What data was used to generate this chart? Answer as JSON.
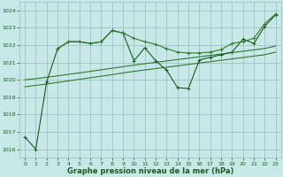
{
  "bg_color": "#c8e8e8",
  "grid_color": "#99bbbb",
  "dark_green": "#1a5c1a",
  "mid_green": "#2d7a2d",
  "xlabel": "Graphe pression niveau de la mer (hPa)",
  "ylim": [
    1015.5,
    1024.5
  ],
  "xlim": [
    -0.5,
    23.5
  ],
  "yticks": [
    1016,
    1017,
    1018,
    1019,
    1020,
    1021,
    1022,
    1023,
    1024
  ],
  "xticks": [
    0,
    1,
    2,
    3,
    4,
    5,
    6,
    7,
    8,
    9,
    10,
    11,
    12,
    13,
    14,
    15,
    16,
    17,
    18,
    19,
    20,
    21,
    22,
    23
  ],
  "line1_x": [
    0,
    1,
    2,
    3,
    4,
    5,
    6,
    7,
    8,
    9,
    10,
    11,
    12,
    13,
    14,
    15,
    16,
    17,
    18,
    19,
    20,
    21,
    22,
    23
  ],
  "line1_y": [
    1016.7,
    1016.0,
    1019.9,
    1021.8,
    1022.2,
    1022.2,
    1022.1,
    1022.2,
    1022.85,
    1022.7,
    1021.1,
    1021.85,
    1021.1,
    1020.55,
    1019.55,
    1019.5,
    1021.15,
    1021.3,
    1021.45,
    1021.6,
    1022.35,
    1022.1,
    1023.1,
    1023.75
  ],
  "line2_x": [
    3,
    4,
    5,
    6,
    7,
    8,
    9,
    10,
    11,
    12,
    13,
    14,
    15,
    16,
    17,
    18,
    19,
    20,
    21,
    22,
    23
  ],
  "line2_y": [
    1021.8,
    1022.2,
    1022.2,
    1022.1,
    1022.2,
    1022.85,
    1022.7,
    1022.4,
    1022.2,
    1022.05,
    1021.8,
    1021.6,
    1021.55,
    1021.55,
    1021.6,
    1021.75,
    1022.1,
    1022.2,
    1022.4,
    1023.25,
    1023.8
  ],
  "trend1_x": [
    0,
    1,
    2,
    3,
    4,
    5,
    6,
    7,
    8,
    9,
    10,
    11,
    12,
    13,
    14,
    15,
    16,
    17,
    18,
    19,
    20,
    21,
    22,
    23
  ],
  "trend1_y": [
    1020.0,
    1020.07,
    1020.15,
    1020.23,
    1020.32,
    1020.4,
    1020.49,
    1020.58,
    1020.67,
    1020.76,
    1020.85,
    1020.93,
    1021.01,
    1021.09,
    1021.17,
    1021.25,
    1021.33,
    1021.41,
    1021.49,
    1021.57,
    1021.65,
    1021.73,
    1021.81,
    1021.95
  ],
  "trend2_x": [
    0,
    1,
    2,
    3,
    4,
    5,
    6,
    7,
    8,
    9,
    10,
    11,
    12,
    13,
    14,
    15,
    16,
    17,
    18,
    19,
    20,
    21,
    22,
    23
  ],
  "trend2_y": [
    1019.6,
    1019.68,
    1019.76,
    1019.85,
    1019.94,
    1020.03,
    1020.12,
    1020.21,
    1020.3,
    1020.4,
    1020.49,
    1020.57,
    1020.65,
    1020.73,
    1020.81,
    1020.89,
    1020.97,
    1021.05,
    1021.13,
    1021.21,
    1021.29,
    1021.37,
    1021.45,
    1021.6
  ]
}
